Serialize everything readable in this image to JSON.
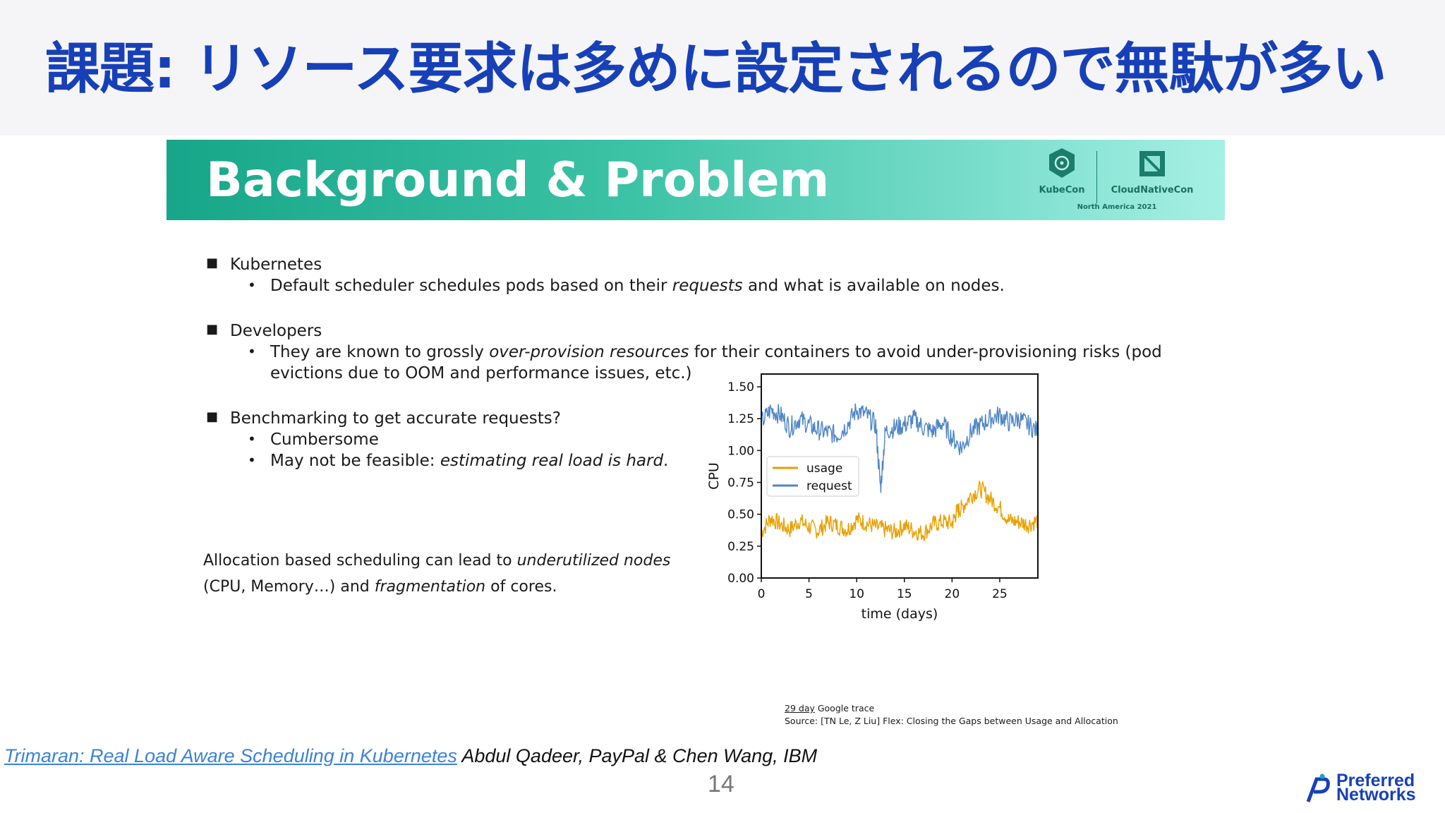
{
  "slide": {
    "title": "課題: リソース要求は多めに設定されるので無駄が多い",
    "page_number": "14",
    "reference_link": "Trimaran: Real Load Aware Scheduling in Kubernetes",
    "reference_authors": " Abdul Qadeer, PayPal & Chen Wang, IBM",
    "brand_line1": "Preferred",
    "brand_line2": "Networks"
  },
  "embedded": {
    "banner_title": "Background & Problem",
    "logo_kubecon": "KubeCon",
    "logo_cnc": "CloudNativeCon",
    "logo_event": "North America 2021",
    "bullets": {
      "b1": "Kubernetes",
      "b1_sub_a": "Default scheduler schedules pods based on their ",
      "b1_sub_em": "requests",
      "b1_sub_b": " and what is available on nodes.",
      "b2": "Developers",
      "b2_sub_a": "They are known to grossly ",
      "b2_sub_em": "over-provision resources",
      "b2_sub_b": " for their containers to avoid under-provisioning risks (pod",
      "b2_sub_c": "evictions due to OOM and performance issues, etc.)",
      "b3": "Benchmarking to get accurate requests?",
      "b3_sub1": "Cumbersome",
      "b3_sub2_a": "May not be feasible: ",
      "b3_sub2_em": "estimating real load is hard",
      "b3_sub2_b": "."
    },
    "note": {
      "line1_a": "Allocation based scheduling can lead to ",
      "line1_em": "underutilized nodes",
      "line2_a": "(CPU, Memory…) and ",
      "line2_em": "fragmentation",
      "line2_b": " of cores."
    },
    "source_line1_a": "29 day",
    "source_line1_b": " Google trace",
    "source_line2": "Source: [TN Le, Z Liu] Flex: Closing the Gaps between Usage and Allocation"
  },
  "chart_data": {
    "type": "line",
    "xlabel": "time (days)",
    "ylabel": "CPU",
    "xlim": [
      0,
      29
    ],
    "ylim": [
      0,
      1.6
    ],
    "xticks": [
      "0",
      "5",
      "10",
      "15",
      "20",
      "25"
    ],
    "yticks": [
      "0.00",
      "0.25",
      "0.50",
      "0.75",
      "1.00",
      "1.25",
      "1.50"
    ],
    "legend_position": "center-left",
    "series": [
      {
        "name": "usage",
        "color": "#e8a000",
        "x": [
          0,
          1,
          2,
          3,
          4,
          5,
          6,
          7,
          8,
          9,
          10,
          11,
          12,
          13,
          14,
          15,
          16,
          17,
          18,
          19,
          20,
          20.5,
          21,
          22,
          23,
          24,
          25,
          26,
          27,
          28,
          29
        ],
        "y": [
          0.36,
          0.47,
          0.42,
          0.38,
          0.45,
          0.4,
          0.37,
          0.44,
          0.41,
          0.38,
          0.46,
          0.43,
          0.4,
          0.38,
          0.36,
          0.41,
          0.37,
          0.35,
          0.42,
          0.44,
          0.43,
          0.52,
          0.55,
          0.65,
          0.7,
          0.62,
          0.55,
          0.45,
          0.44,
          0.42,
          0.45
        ]
      },
      {
        "name": "request",
        "color": "#4f86c6",
        "x": [
          0,
          1,
          2,
          3,
          4,
          5,
          6,
          7,
          8,
          9,
          10,
          11,
          12,
          12.5,
          13,
          14,
          15,
          16,
          17,
          18,
          19,
          20,
          21,
          22,
          23,
          24,
          25,
          26,
          27,
          28,
          29
        ],
        "y": [
          1.22,
          1.32,
          1.28,
          1.18,
          1.25,
          1.2,
          1.16,
          1.14,
          1.12,
          1.2,
          1.32,
          1.28,
          1.2,
          0.7,
          1.15,
          1.18,
          1.2,
          1.25,
          1.18,
          1.15,
          1.22,
          1.1,
          1.02,
          1.15,
          1.2,
          1.25,
          1.28,
          1.22,
          1.25,
          1.2,
          1.15
        ]
      }
    ]
  }
}
